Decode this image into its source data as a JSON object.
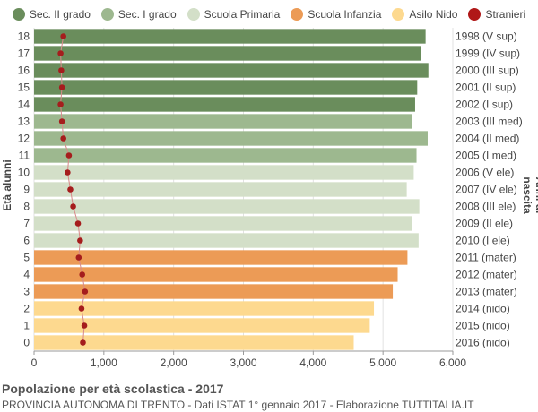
{
  "chart_data": {
    "type": "bar",
    "orientation": "horizontal",
    "categories": [
      "18",
      "17",
      "16",
      "15",
      "14",
      "13",
      "12",
      "11",
      "10",
      "9",
      "8",
      "7",
      "6",
      "5",
      "4",
      "3",
      "2",
      "1",
      "0"
    ],
    "birth_years": [
      "1998 (V sup)",
      "1999 (IV sup)",
      "2000 (III sup)",
      "2001 (II sup)",
      "2002 (I sup)",
      "2003 (III med)",
      "2004 (II med)",
      "2005 (I med)",
      "2006 (V ele)",
      "2007 (IV ele)",
      "2008 (III ele)",
      "2009 (II ele)",
      "2010 (I ele)",
      "2011 (mater)",
      "2012 (mater)",
      "2013 (mater)",
      "2014 (nido)",
      "2015 (nido)",
      "2016 (nido)"
    ],
    "values": [
      5610,
      5540,
      5650,
      5490,
      5460,
      5420,
      5640,
      5480,
      5440,
      5340,
      5520,
      5420,
      5510,
      5350,
      5210,
      5140,
      4870,
      4810,
      4580
    ],
    "series_group": [
      "sec2",
      "sec2",
      "sec2",
      "sec2",
      "sec2",
      "sec1",
      "sec1",
      "sec1",
      "prim",
      "prim",
      "prim",
      "prim",
      "prim",
      "inf",
      "inf",
      "inf",
      "nido",
      "nido",
      "nido"
    ],
    "stranieri": [
      420,
      380,
      390,
      400,
      380,
      400,
      420,
      500,
      480,
      520,
      560,
      630,
      660,
      640,
      690,
      730,
      680,
      720,
      700
    ],
    "legend": [
      {
        "key": "sec2",
        "name": "Sec. II grado",
        "color": "#6a8d5c"
      },
      {
        "key": "sec1",
        "name": "Sec. I grado",
        "color": "#9db88f"
      },
      {
        "key": "prim",
        "name": "Scuola Primaria",
        "color": "#d3dfc8"
      },
      {
        "key": "inf",
        "name": "Scuola Infanzia",
        "color": "#ec9b56"
      },
      {
        "key": "nido",
        "name": "Asilo Nido",
        "color": "#fdd98f"
      },
      {
        "key": "stranieri",
        "name": "Stranieri",
        "color": "#b01818"
      }
    ],
    "xlim": [
      0,
      6000
    ],
    "xticks": [
      0,
      1000,
      2000,
      3000,
      4000,
      5000,
      6000
    ],
    "xtick_labels": [
      "0",
      "1,000",
      "2,000",
      "3,000",
      "4,000",
      "5,000",
      "6,000"
    ],
    "ylabel_left": "Età alunni",
    "ylabel_right": "Anni di nascita",
    "grid": true,
    "legend_position": "top"
  },
  "footer": {
    "title": "Popolazione per età scolastica - 2017",
    "subtitle": "PROVINCIA AUTONOMA DI TRENTO - Dati ISTAT 1° gennaio 2017 - Elaborazione TUTTITALIA.IT"
  }
}
